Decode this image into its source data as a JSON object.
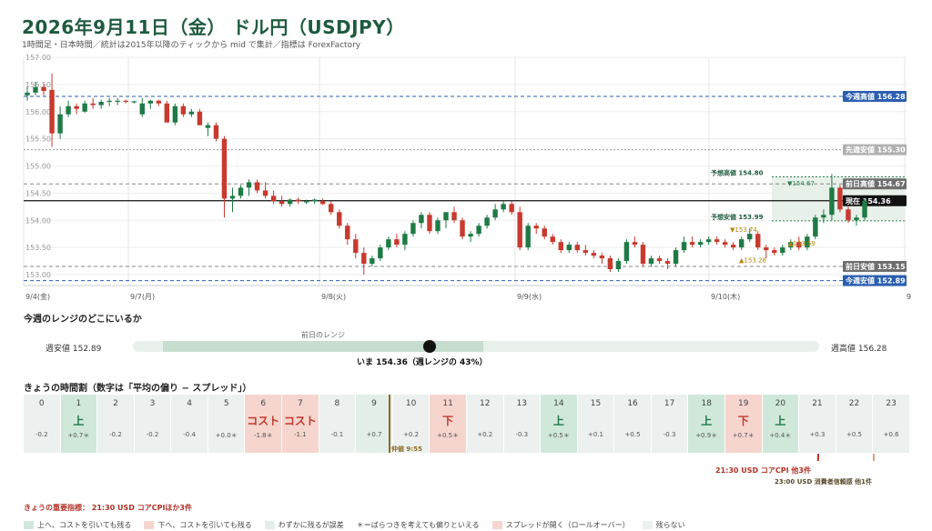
{
  "title": "2026年9月11日（金） ドル円（USDJPY）",
  "subtitle": "1時間足・日本時間／統計は2015年以降のティックから mid で集計／指標は ForexFactory",
  "chart_data": {
    "type": "candlestick",
    "ylim": [
      152.9,
      157.0
    ],
    "y_ticks": [
      "157.00",
      "156.50",
      "156.00",
      "155.50",
      "155.00",
      "154.50",
      "154.00",
      "153.50",
      "153.00"
    ],
    "x_labels": [
      "9/4(金)",
      "9/7(月)",
      "9/8(火)",
      "9/9(水)",
      "9/10(木)",
      "9"
    ],
    "candles": [
      [
        156.3,
        156.45,
        156.2,
        156.35
      ],
      [
        156.35,
        156.55,
        156.3,
        156.45
      ],
      [
        156.45,
        156.5,
        156.3,
        156.38
      ],
      [
        156.4,
        156.7,
        155.35,
        155.6
      ],
      [
        155.6,
        156.1,
        155.5,
        155.95
      ],
      [
        155.95,
        156.2,
        155.9,
        156.1
      ],
      [
        156.1,
        156.15,
        155.95,
        156.05
      ],
      [
        156.0,
        156.2,
        155.98,
        156.15
      ],
      [
        156.15,
        156.25,
        156.05,
        156.12
      ],
      [
        156.12,
        156.22,
        156.05,
        156.18
      ],
      [
        156.18,
        156.25,
        156.1,
        156.2
      ],
      [
        156.2,
        156.25,
        156.12,
        156.2
      ],
      [
        156.2,
        156.22,
        156.15,
        156.18
      ],
      [
        156.18,
        156.2,
        156.15,
        156.19
      ],
      [
        155.95,
        156.25,
        155.9,
        156.15
      ],
      [
        156.15,
        156.22,
        156.05,
        156.2
      ],
      [
        156.2,
        156.22,
        156.1,
        156.15
      ],
      [
        156.15,
        156.2,
        155.8,
        155.8
      ],
      [
        155.8,
        156.15,
        155.75,
        156.1
      ],
      [
        156.1,
        156.15,
        155.9,
        155.95
      ],
      [
        155.95,
        156.05,
        155.9,
        156.0
      ],
      [
        156.0,
        156.05,
        155.75,
        155.75
      ],
      [
        155.7,
        155.8,
        155.55,
        155.75
      ],
      [
        155.75,
        155.8,
        155.45,
        155.5
      ],
      [
        155.5,
        155.55,
        154.05,
        154.4
      ],
      [
        154.4,
        154.6,
        154.15,
        154.45
      ],
      [
        154.45,
        154.65,
        154.4,
        154.6
      ],
      [
        154.6,
        154.75,
        154.45,
        154.7
      ],
      [
        154.7,
        154.75,
        154.5,
        154.55
      ],
      [
        154.55,
        154.7,
        154.4,
        154.45
      ],
      [
        154.45,
        154.55,
        154.3,
        154.35
      ],
      [
        154.35,
        154.45,
        154.25,
        154.3
      ],
      [
        154.3,
        154.4,
        154.25,
        154.38
      ],
      [
        154.38,
        154.42,
        154.3,
        154.35
      ],
      [
        154.35,
        154.38,
        154.3,
        154.35
      ],
      [
        154.35,
        154.4,
        154.3,
        154.38
      ],
      [
        154.35,
        154.4,
        154.28,
        154.3
      ],
      [
        154.3,
        154.35,
        154.1,
        154.15
      ],
      [
        154.15,
        154.2,
        153.85,
        153.9
      ],
      [
        153.9,
        153.95,
        153.55,
        153.65
      ],
      [
        153.65,
        153.75,
        153.3,
        153.4
      ],
      [
        153.4,
        153.5,
        153.0,
        153.2
      ],
      [
        153.2,
        153.35,
        153.15,
        153.3
      ],
      [
        153.3,
        153.55,
        153.25,
        153.5
      ],
      [
        153.5,
        153.7,
        153.45,
        153.65
      ],
      [
        153.65,
        153.75,
        153.5,
        153.55
      ],
      [
        153.55,
        153.8,
        153.45,
        153.75
      ],
      [
        153.75,
        154.0,
        153.7,
        153.95
      ],
      [
        153.95,
        154.15,
        153.85,
        154.1
      ],
      [
        154.1,
        154.15,
        153.75,
        153.8
      ],
      [
        153.8,
        154.05,
        153.75,
        154.0
      ],
      [
        154.0,
        154.15,
        153.85,
        154.15
      ],
      [
        154.15,
        154.25,
        153.95,
        154.0
      ],
      [
        154.0,
        154.05,
        153.65,
        153.7
      ],
      [
        153.7,
        153.8,
        153.6,
        153.75
      ],
      [
        153.75,
        153.95,
        153.7,
        153.9
      ],
      [
        153.9,
        154.1,
        153.85,
        154.05
      ],
      [
        154.05,
        154.3,
        154.0,
        154.2
      ],
      [
        154.2,
        154.35,
        154.15,
        154.3
      ],
      [
        154.3,
        154.35,
        154.1,
        154.15
      ],
      [
        154.15,
        154.25,
        153.45,
        153.5
      ],
      [
        153.5,
        153.95,
        153.45,
        153.9
      ],
      [
        153.9,
        153.95,
        153.75,
        153.85
      ],
      [
        153.85,
        153.9,
        153.65,
        153.7
      ],
      [
        153.7,
        153.75,
        153.55,
        153.6
      ],
      [
        153.6,
        153.65,
        153.4,
        153.45
      ],
      [
        153.45,
        153.6,
        153.4,
        153.55
      ],
      [
        153.55,
        153.6,
        153.4,
        153.45
      ],
      [
        153.45,
        153.55,
        153.35,
        153.4
      ],
      [
        153.4,
        153.45,
        153.3,
        153.35
      ],
      [
        153.35,
        153.4,
        153.2,
        153.3
      ],
      [
        153.3,
        153.35,
        153.05,
        153.1
      ],
      [
        153.1,
        153.3,
        153.05,
        153.25
      ],
      [
        153.25,
        153.65,
        153.2,
        153.6
      ],
      [
        153.6,
        153.7,
        153.5,
        153.55
      ],
      [
        153.55,
        153.6,
        153.15,
        153.2
      ],
      [
        153.2,
        153.35,
        153.15,
        153.3
      ],
      [
        153.3,
        153.35,
        153.2,
        153.25
      ],
      [
        153.25,
        153.3,
        153.1,
        153.2
      ],
      [
        153.2,
        153.5,
        153.15,
        153.45
      ],
      [
        153.45,
        153.7,
        153.4,
        153.6
      ],
      [
        153.6,
        153.7,
        153.5,
        153.55
      ],
      [
        153.55,
        153.65,
        153.5,
        153.6
      ],
      [
        153.6,
        153.7,
        153.55,
        153.65
      ],
      [
        153.65,
        153.7,
        153.55,
        153.6
      ],
      [
        153.6,
        153.65,
        153.5,
        153.55
      ],
      [
        153.55,
        153.6,
        153.45,
        153.5
      ],
      [
        153.5,
        153.7,
        153.45,
        153.65
      ],
      [
        153.65,
        153.85,
        153.6,
        153.75
      ],
      [
        153.75,
        153.8,
        153.45,
        153.5
      ],
      [
        153.5,
        153.55,
        153.3,
        153.45
      ],
      [
        153.45,
        153.5,
        153.35,
        153.4
      ],
      [
        153.4,
        153.55,
        153.35,
        153.5
      ],
      [
        153.5,
        153.65,
        153.45,
        153.6
      ],
      [
        153.6,
        153.7,
        153.45,
        153.5
      ],
      [
        153.5,
        153.75,
        153.45,
        153.7
      ],
      [
        153.7,
        154.1,
        153.65,
        154.05
      ],
      [
        154.05,
        154.2,
        153.95,
        154.1
      ],
      [
        154.1,
        154.85,
        154.0,
        154.6
      ],
      [
        154.6,
        154.65,
        154.15,
        154.2
      ],
      [
        154.2,
        154.25,
        153.95,
        154.0
      ],
      [
        154.0,
        154.1,
        153.9,
        154.05
      ],
      [
        154.05,
        154.4,
        154.0,
        154.36
      ]
    ],
    "levels": [
      {
        "label": "今週高値",
        "value": "156.28",
        "v": 156.28,
        "style": "dash-blue"
      },
      {
        "label": "先週安値",
        "value": "155.30",
        "v": 155.3,
        "style": "dot-gray"
      },
      {
        "label": "前日高値",
        "value": "154.67",
        "v": 154.67,
        "style": "dash-gray"
      },
      {
        "label": "現在",
        "value": "154.36",
        "v": 154.36,
        "style": "solid-black"
      },
      {
        "label": "今週安値",
        "value": "152.89",
        "v": 152.89,
        "style": "dash-blue"
      },
      {
        "label": "前日安値",
        "value": "153.15",
        "v": 153.15,
        "style": "dash-gray"
      }
    ],
    "forecast": {
      "high_label": "予想高値 154.80",
      "high": 154.8,
      "low_label": "予想安値 153.99",
      "low": 153.99
    },
    "markers": [
      {
        "text": "▼154.67",
        "v": 154.67,
        "color": "#2e7d4f"
      },
      {
        "text": "▼153.74",
        "v": 153.74,
        "color": "#b8860b"
      },
      {
        "text": "▲153.59",
        "v": 153.59,
        "color": "#b8860b"
      },
      {
        "text": "▲153.28",
        "v": 153.28,
        "color": "#b8860b"
      }
    ]
  },
  "range": {
    "heading": "今週のレンジのどこにいるか",
    "low_label": "週安値 152.89",
    "high_label": "週高値 156.28",
    "prev_label": "前日のレンジ",
    "now_label": "いま 154.36（週レンジの 43%）",
    "pct": 0.43
  },
  "hours": {
    "heading": "きょうの時間割（数字は「平均の偏り − スプレッド」）",
    "items": [
      {
        "h": "0",
        "w": "",
        "v": "-0.2",
        "c": ""
      },
      {
        "h": "1",
        "w": "上",
        "v": "+0.7＊",
        "c": "up"
      },
      {
        "h": "2",
        "w": "",
        "v": "-0.2",
        "c": ""
      },
      {
        "h": "3",
        "w": "",
        "v": "-0.2",
        "c": ""
      },
      {
        "h": "4",
        "w": "",
        "v": "-0.4",
        "c": ""
      },
      {
        "h": "5",
        "w": "",
        "v": "+0.0＊",
        "c": ""
      },
      {
        "h": "6",
        "w": "コスト",
        "v": "-1.8＊",
        "c": "cost"
      },
      {
        "h": "7",
        "w": "コスト",
        "v": "-1.1",
        "c": "cost"
      },
      {
        "h": "8",
        "w": "",
        "v": "-0.1",
        "c": ""
      },
      {
        "h": "9",
        "w": "",
        "v": "+0.7",
        "c": "lt"
      },
      {
        "h": "10",
        "w": "",
        "v": "+0.2",
        "c": ""
      },
      {
        "h": "11",
        "w": "下",
        "v": "+0.5＊",
        "c": "dn"
      },
      {
        "h": "12",
        "w": "",
        "v": "+0.2",
        "c": ""
      },
      {
        "h": "13",
        "w": "",
        "v": "-0.3",
        "c": ""
      },
      {
        "h": "14",
        "w": "上",
        "v": "+0.5＊",
        "c": "up"
      },
      {
        "h": "15",
        "w": "",
        "v": "+0.1",
        "c": ""
      },
      {
        "h": "16",
        "w": "",
        "v": "+0.5",
        "c": ""
      },
      {
        "h": "17",
        "w": "",
        "v": "-0.3",
        "c": ""
      },
      {
        "h": "18",
        "w": "上",
        "v": "+0.9＊",
        "c": "up"
      },
      {
        "h": "19",
        "w": "下",
        "v": "+0.7＊",
        "c": "dn"
      },
      {
        "h": "20",
        "w": "上",
        "v": "+0.4＊",
        "c": "up"
      },
      {
        "h": "21",
        "w": "",
        "v": "+0.3",
        "c": ""
      },
      {
        "h": "22",
        "w": "",
        "v": "+0.5",
        "c": ""
      },
      {
        "h": "23",
        "w": "",
        "v": "+0.6",
        "c": ""
      }
    ],
    "now_marker": "仲値 9:55",
    "event1": "21:30 USD コアCPI 他3件",
    "event2": "23:00 USD 消費者信頼感 他1件"
  },
  "key_events": "きょうの重要指標： 21:30 USD コアCPIほか3件",
  "legend": [
    {
      "label": "上へ、コストを引いても残る",
      "color": "#cfe8da"
    },
    {
      "label": "下へ、コストを引いても残る",
      "color": "#f6d5cf"
    },
    {
      "label": "わずかに残るが誤差",
      "color": "#e2efe8"
    },
    {
      "label": "＊＝ばらつきを考えても偏りといえる",
      "color": ""
    },
    {
      "label": "スプレッドが開く（ロールオーバー）",
      "color": "#f6d5cf"
    },
    {
      "label": "残らない",
      "color": "#ecf0ee"
    }
  ]
}
